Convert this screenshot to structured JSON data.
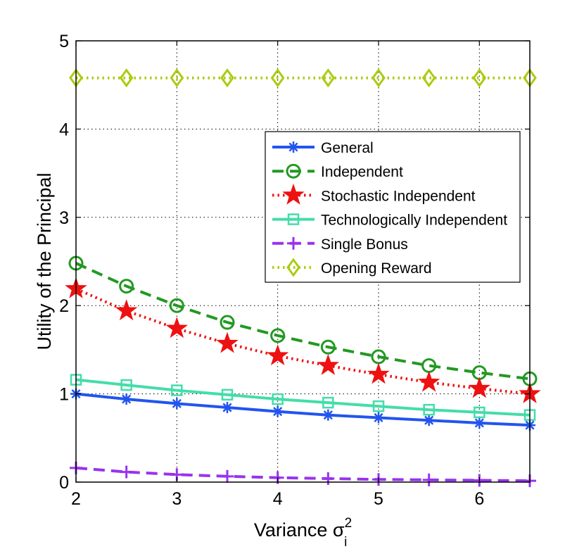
{
  "chart_data": {
    "type": "line",
    "title": "",
    "xlabel": "Variance σ",
    "xlabel_superscript": "2",
    "xlabel_subscript": "i",
    "ylabel": "Utility of the Principal",
    "xlim": [
      2,
      6.5
    ],
    "ylim": [
      0,
      5
    ],
    "xticks": [
      "2",
      "3",
      "4",
      "5",
      "6"
    ],
    "yticks": [
      "0",
      "1",
      "2",
      "3",
      "4",
      "5"
    ],
    "grid": true,
    "legend_position": "upper-right",
    "x": [
      2,
      2.5,
      3,
      3.5,
      4,
      4.5,
      5,
      5.5,
      6,
      6.5
    ],
    "series": [
      {
        "name": "General",
        "color": "#2255ee",
        "line": "solid",
        "marker": "asterisk",
        "values": [
          1.0,
          0.94,
          0.89,
          0.845,
          0.8,
          0.76,
          0.73,
          0.7,
          0.67,
          0.645
        ]
      },
      {
        "name": "Independent",
        "color": "#229922",
        "line": "dashed",
        "marker": "circle",
        "values": [
          2.48,
          2.22,
          2.0,
          1.81,
          1.66,
          1.53,
          1.42,
          1.32,
          1.24,
          1.17
        ]
      },
      {
        "name": "Stochastic Independent",
        "color": "#ee1111",
        "line": "dotted",
        "marker": "star",
        "values": [
          2.19,
          1.94,
          1.74,
          1.57,
          1.43,
          1.32,
          1.22,
          1.13,
          1.06,
          1.0
        ]
      },
      {
        "name": "Technologically Independent",
        "color": "#44ddaa",
        "line": "solid",
        "marker": "square",
        "values": [
          1.16,
          1.1,
          1.04,
          0.99,
          0.94,
          0.9,
          0.86,
          0.82,
          0.79,
          0.76
        ]
      },
      {
        "name": "Single Bonus",
        "color": "#9933ee",
        "line": "dashed",
        "marker": "plus",
        "values": [
          0.16,
          0.115,
          0.085,
          0.065,
          0.05,
          0.04,
          0.03,
          0.025,
          0.02,
          0.015
        ]
      },
      {
        "name": "Opening Reward",
        "color": "#aacc11",
        "line": "dotted",
        "marker": "diamond",
        "values": [
          4.58,
          4.58,
          4.58,
          4.58,
          4.58,
          4.58,
          4.58,
          4.58,
          4.58,
          4.58
        ]
      }
    ]
  }
}
